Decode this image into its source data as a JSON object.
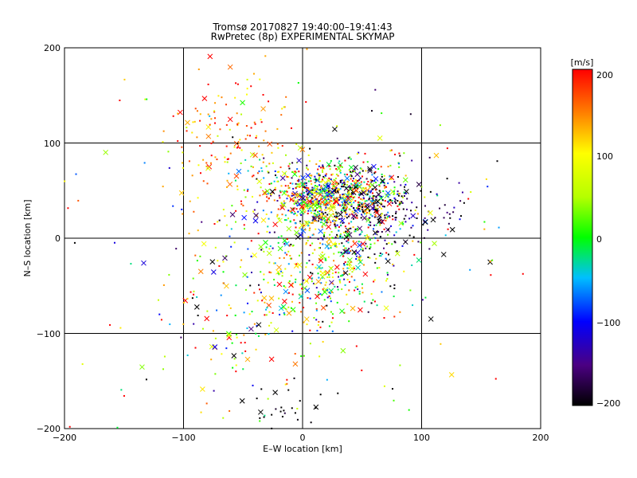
{
  "chart_data": {
    "type": "scatter",
    "title": "Tromsø 20170827 19:40:00–19:41:43",
    "subtitle": "RwPretec (8p) EXPERIMENTAL SKYMAP",
    "xlabel": "E–W location [km]",
    "ylabel": "N–S location [km]",
    "xlim": [
      -200,
      200
    ],
    "ylim": [
      -200,
      200
    ],
    "xticks": [
      "−200",
      "−100",
      "0",
      "100",
      "200"
    ],
    "yticks": [
      "−200",
      "−100",
      "0",
      "100",
      "200"
    ],
    "grid_x": [
      -100,
      0,
      100
    ],
    "grid_y": [
      -100,
      0,
      100
    ],
    "grid": true,
    "colorbar": {
      "label": "[m/s]",
      "min": -200,
      "max": 200,
      "ticks": [
        "200",
        "100",
        "0",
        "−100",
        "−200"
      ],
      "colormap": "black-purple-blue-cyan-green-yellow-orange-red"
    },
    "marker_styles": [
      "dot",
      "x"
    ],
    "clusters": [
      {
        "center_x": 25,
        "center_y": 45,
        "spread_x": 30,
        "spread_y": 18,
        "count": 900,
        "velocity_mean": 20,
        "velocity_spread": 140
      },
      {
        "center_x": 70,
        "center_y": 25,
        "spread_x": 35,
        "spread_y": 22,
        "count": 220,
        "velocity_mean": -180,
        "velocity_spread": 40
      },
      {
        "center_x": 20,
        "center_y": -30,
        "spread_x": 30,
        "spread_y": 35,
        "count": 420,
        "velocity_mean": 40,
        "velocity_spread": 110
      },
      {
        "center_x": -60,
        "center_y": 100,
        "spread_x": 30,
        "spread_y": 35,
        "count": 160,
        "velocity_mean": 150,
        "velocity_spread": 60
      },
      {
        "center_x": -55,
        "center_y": -80,
        "spread_x": 30,
        "spread_y": 40,
        "count": 120,
        "velocity_mean": 60,
        "velocity_spread": 130
      },
      {
        "center_x": -10,
        "center_y": -180,
        "spread_x": 15,
        "spread_y": 15,
        "count": 30,
        "velocity_mean": -200,
        "velocity_spread": 10
      },
      {
        "center_x": 0,
        "center_y": 0,
        "spread_x": 110,
        "spread_y": 110,
        "count": 180,
        "velocity_mean": 0,
        "velocity_spread": 180
      }
    ]
  }
}
